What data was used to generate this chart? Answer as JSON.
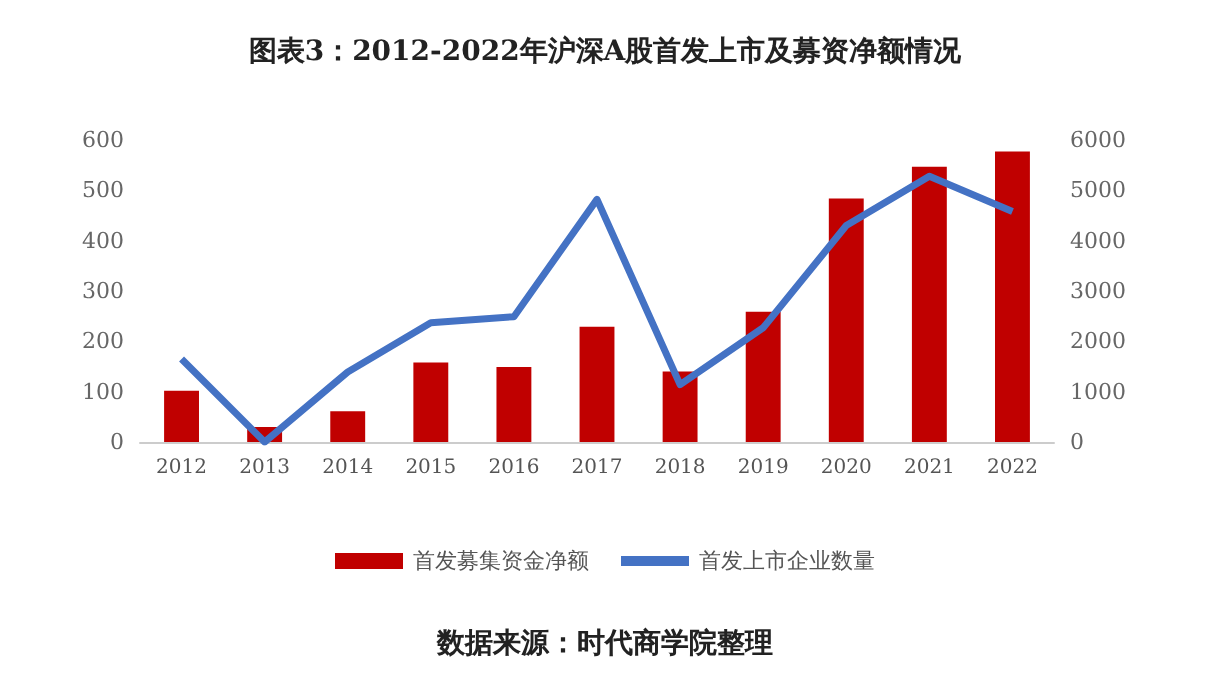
{
  "chart_data": {
    "type": "bar",
    "title": "图表3：2012-2022年沪深A股首发上市及募资净额情况",
    "categories": [
      "2012",
      "2013",
      "2014",
      "2015",
      "2016",
      "2017",
      "2018",
      "2019",
      "2020",
      "2021",
      "2022"
    ],
    "series": [
      {
        "name": "首发募集资金净额",
        "color": "#c00000",
        "values": [
          102,
          30,
          61,
          158,
          149,
          229,
          140,
          259,
          484,
          547,
          577
        ]
      },
      {
        "name": "首发上市企业数量",
        "type": "line",
        "axis": "y2",
        "color": "#4472c4",
        "values": [
          1650,
          0,
          1390,
          2370,
          2490,
          4820,
          1140,
          2270,
          4300,
          5280,
          4580
        ]
      }
    ],
    "ylim": [
      0,
      600
    ],
    "yticks": [
      0,
      100,
      200,
      300,
      400,
      500,
      600
    ],
    "y2lim": [
      0,
      6000
    ],
    "y2ticks": [
      0,
      1000,
      2000,
      3000,
      4000,
      5000,
      6000
    ],
    "legend": "bottom",
    "grid": false,
    "annotations": [
      "数据来源：时代商学院整理"
    ]
  }
}
